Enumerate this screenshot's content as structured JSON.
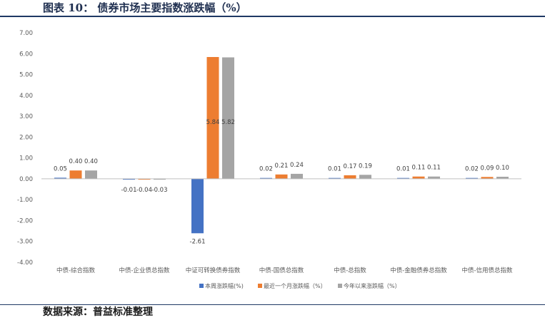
{
  "header": {
    "title": "图表 10：  债券市场主要指数涨跌幅（%）"
  },
  "footer": {
    "source": "数据来源：普益标准整理"
  },
  "chart_data": {
    "type": "bar",
    "categories": [
      "中债-综合指数",
      "中债-企业债总指数",
      "中证可转换债券指数",
      "中债-国债总指数",
      "中债-总指数",
      "中债-金融债券总指数",
      "中债-信用债总指数"
    ],
    "series": [
      {
        "name": "本周涨跌幅(%)",
        "color": "#4472c4",
        "values": [
          0.05,
          -0.01,
          -2.61,
          0.02,
          0.01,
          0.01,
          0.02
        ],
        "labels": [
          "0.05",
          "-0.01",
          "-2.61",
          "0.02",
          "0.01",
          "0.01",
          "0.02"
        ]
      },
      {
        "name": "最近一个月涨跌幅（%）",
        "color": "#ed7d31",
        "values": [
          0.4,
          -0.04,
          5.84,
          0.21,
          0.17,
          0.11,
          0.09
        ],
        "labels": [
          "0.40",
          "-0.04",
          "5.84",
          "0.21",
          "0.17",
          "0.11",
          "0.09"
        ]
      },
      {
        "name": "今年以来涨跌幅（%）",
        "color": "#a5a5a5",
        "values": [
          0.4,
          -0.03,
          5.82,
          0.24,
          0.19,
          0.11,
          0.1
        ],
        "labels": [
          "0.40",
          "-0.03",
          "5.82",
          "0.24",
          "0.19",
          "0.11",
          "0.10"
        ]
      }
    ],
    "y_ticks": [
      "7.00",
      "6.00",
      "5.00",
      "4.00",
      "3.00",
      "2.00",
      "1.00",
      "0.00",
      "-1.00",
      "-2.00",
      "-3.00",
      "-4.00"
    ],
    "ylim": [
      -4,
      7
    ],
    "grid": false,
    "legend_position": "bottom"
  }
}
